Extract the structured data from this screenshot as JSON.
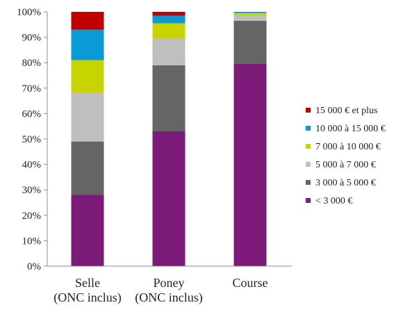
{
  "chart_data": {
    "type": "bar",
    "stacked": true,
    "percent": true,
    "ylim": [
      0,
      100
    ],
    "yticks": [
      "0%",
      "10%",
      "20%",
      "30%",
      "40%",
      "50%",
      "60%",
      "70%",
      "80%",
      "90%",
      "100%"
    ],
    "categories": [
      [
        "Selle",
        "(ONC inclus)"
      ],
      [
        "Poney",
        "(ONC inclus)"
      ],
      [
        "Course"
      ]
    ],
    "series": [
      {
        "name": "< 3 000 €",
        "color": "#7b1a78",
        "values": [
          28,
          53,
          79.5
        ]
      },
      {
        "name": "3 000 à 5 000 €",
        "color": "#656565",
        "values": [
          21,
          26,
          17
        ]
      },
      {
        "name": "5 000 à 7 000 €",
        "color": "#bfbfbf",
        "values": [
          19,
          10.5,
          2
        ]
      },
      {
        "name": "7 000 à 10 000 €",
        "color": "#c8d400",
        "values": [
          13,
          6,
          1
        ]
      },
      {
        "name": "10 000 à 15 000 €",
        "color": "#0a9ad8",
        "values": [
          12,
          3,
          0.5
        ]
      },
      {
        "name": "15 000 € et plus",
        "color": "#c00000",
        "values": [
          7,
          1.5,
          0
        ]
      }
    ],
    "legend_position": "right",
    "grid": false
  }
}
